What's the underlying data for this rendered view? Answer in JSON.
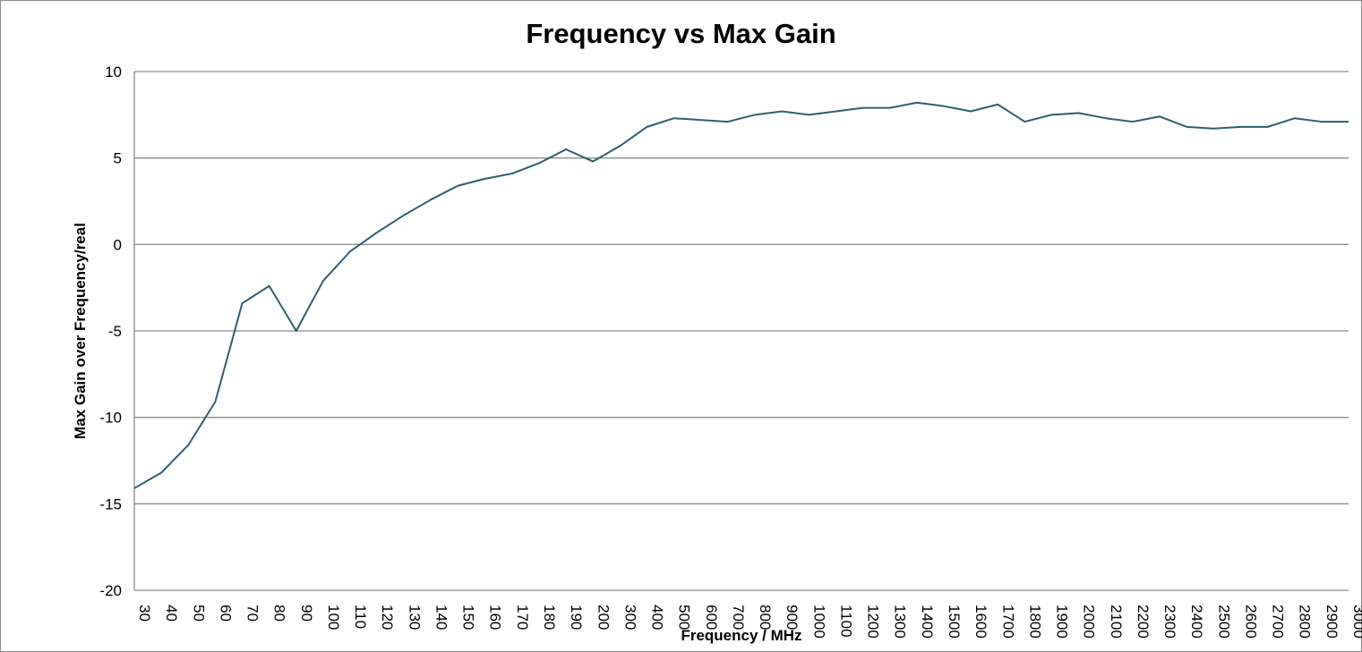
{
  "chart_data": {
    "type": "line",
    "title": "Frequency vs Max Gain",
    "xlabel": "Frequency / MHz",
    "ylabel": "Max Gain over Frequency/real",
    "ylim": [
      -20,
      10
    ],
    "yticks": [
      "10",
      "5",
      "0",
      "-5",
      "-10",
      "-15",
      "-20"
    ],
    "grid": true,
    "categories": [
      "30",
      "40",
      "50",
      "60",
      "70",
      "80",
      "90",
      "100",
      "110",
      "120",
      "130",
      "140",
      "150",
      "160",
      "170",
      "180",
      "190",
      "200",
      "300",
      "400",
      "500",
      "600",
      "700",
      "800",
      "900",
      "1000",
      "1100",
      "1200",
      "1300",
      "1400",
      "1500",
      "1600",
      "1700",
      "1800",
      "1900",
      "2000",
      "2100",
      "2200",
      "2300",
      "2400",
      "2500",
      "2600",
      "2700",
      "2800",
      "2900",
      "3000"
    ],
    "series": [
      {
        "color": "#2e5e6e",
        "values": [
          -14.1,
          -13.2,
          -11.6,
          -9.1,
          -3.4,
          -2.4,
          -5.0,
          -2.1,
          -0.4,
          0.7,
          1.7,
          2.6,
          3.4,
          3.8,
          4.1,
          4.7,
          5.5,
          4.8,
          5.7,
          6.8,
          7.3,
          7.2,
          7.1,
          7.5,
          7.7,
          7.5,
          7.7,
          7.9,
          7.9,
          8.2,
          8.0,
          7.7,
          8.1,
          7.1,
          7.5,
          7.6,
          7.3,
          7.1,
          7.4,
          6.8,
          6.7,
          6.8,
          6.8,
          7.3,
          7.1,
          7.1
        ]
      }
    ]
  }
}
